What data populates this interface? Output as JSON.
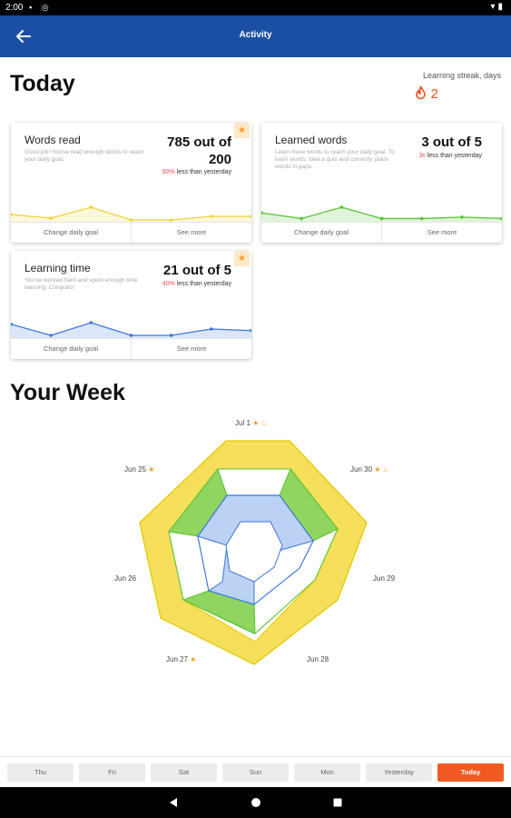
{
  "status_bar": {
    "time": "2:00"
  },
  "app_bar": {
    "title": "Activity"
  },
  "today": {
    "heading": "Today",
    "streak_label": "Learning streak, days",
    "streak_value": "2"
  },
  "cards": {
    "words_read": {
      "title": "Words read",
      "description": "Good job! You've read enough words to reach your daily goal.",
      "value": "785 out of 200",
      "compare_pct": "90%",
      "compare_text": " less than yesterday",
      "button_left": "Change daily goal",
      "button_right": "See more",
      "line_color": "#f2d23a",
      "trend": [
        3,
        1,
        7,
        0,
        0,
        2,
        2
      ]
    },
    "learned_words": {
      "title": "Learned words",
      "description": "Learn more words to reach your daily goal. To learn words, take a quiz and correctly place words in gaps.",
      "value": "3 out of 5",
      "compare_pct": "3x",
      "compare_text": " less than yesterday",
      "button_left": "Change daily goal",
      "button_right": "See more",
      "line_color": "#5bc236",
      "trend": [
        5,
        1,
        9,
        1,
        1,
        2,
        1
      ]
    },
    "learning_time": {
      "title": "Learning time",
      "description": "You've worked hard and spent enough time learning. Congrats!",
      "value": "21 out of 5",
      "compare_pct": "40%",
      "compare_text": " less than yesterday",
      "button_left": "Change daily goal",
      "button_right": "See more",
      "line_color": "#3a76dc",
      "trend": [
        7,
        0,
        8,
        0,
        0,
        4,
        3
      ]
    }
  },
  "week": {
    "heading": "Your Week",
    "labels": {
      "jul1": "Jul 1",
      "jun30": "Jun 30",
      "jun29": "Jun 29",
      "jun28": "Jun 28",
      "jun27": "Jun 27",
      "jun26": "Jun 26",
      "jun25": "Jun 25"
    },
    "star_icon": "★",
    "fire_icon": "flame-icon",
    "colors": {
      "words_read": "#f5df5b",
      "learned_words": "#8fd55f",
      "learning_time": "#bcd2f5"
    }
  },
  "tabs": [
    "Thu",
    "Fri",
    "Sat",
    "Sun",
    "Mon",
    "Yesterday",
    "Today"
  ],
  "active_tab": "Today",
  "accent_color": "#f15a22",
  "app_bar_color": "#1b4fa3"
}
